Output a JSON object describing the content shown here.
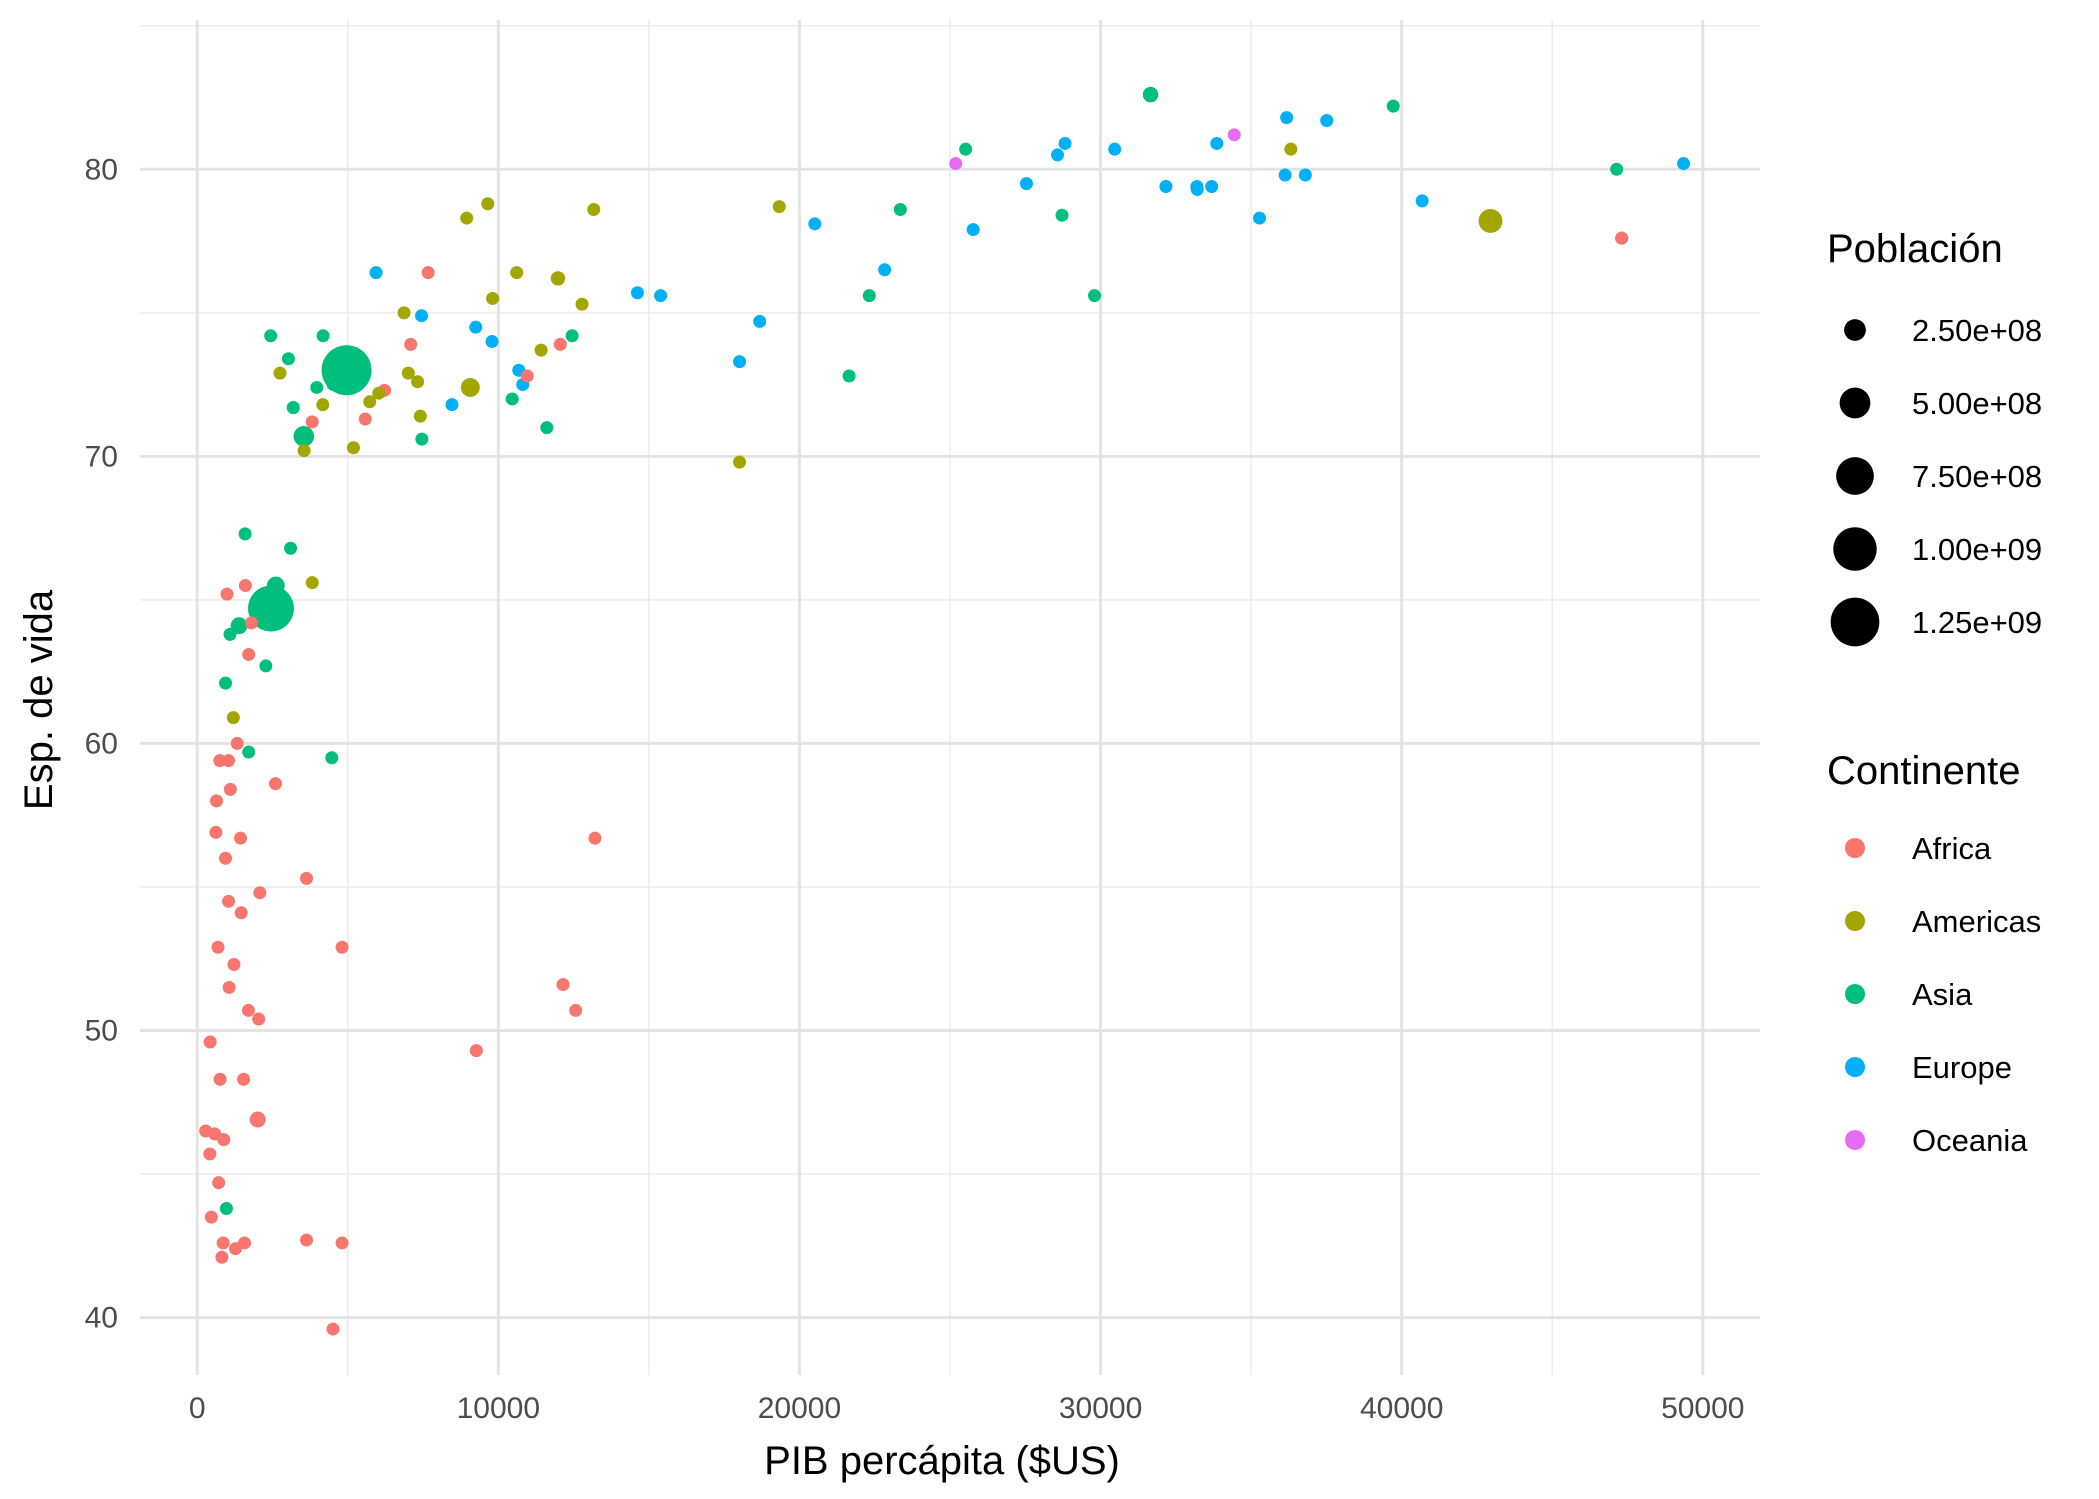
{
  "chart_data": {
    "type": "scatter",
    "title": "",
    "xlabel": "PIB percápita ($US)",
    "ylabel": "Esp. de vida",
    "xlim": [
      -1900,
      51900
    ],
    "ylim": [
      38,
      85.2
    ],
    "x_ticks": [
      0,
      10000,
      20000,
      30000,
      40000,
      50000
    ],
    "x_tick_labels": [
      "0",
      "10000",
      "20000",
      "30000",
      "40000",
      "50000"
    ],
    "y_ticks": [
      40,
      50,
      60,
      70,
      80
    ],
    "y_tick_labels": [
      "40",
      "50",
      "60",
      "70",
      "80"
    ],
    "grid": true,
    "legend_position": "right",
    "size_legend": {
      "title": "Población",
      "values": [
        250000000,
        500000000,
        750000000,
        1000000000,
        1250000000
      ],
      "labels": [
        "2.50e+08",
        "5.00e+08",
        "7.50e+08",
        "1.00e+09",
        "1.25e+09"
      ]
    },
    "color_legend": {
      "title": "Continente",
      "entries": [
        {
          "name": "Africa",
          "color": "#F8766D"
        },
        {
          "name": "Americas",
          "color": "#A3A500"
        },
        {
          "name": "Asia",
          "color": "#00BF7D"
        },
        {
          "name": "Europe",
          "color": "#00B0F6"
        },
        {
          "name": "Oceania",
          "color": "#E76BF3"
        }
      ]
    },
    "series": [
      {
        "name": "Africa",
        "points": [
          [
            6220,
            72.3,
            33000000
          ],
          [
            3630,
            42.7,
            12400000
          ],
          [
            1440,
            56.7,
            8000000
          ],
          [
            12570,
            50.7,
            1600000
          ],
          [
            1220,
            52.3,
            14300000
          ],
          [
            430,
            49.6,
            8400000
          ],
          [
            2040,
            50.4,
            17700000
          ],
          [
            710,
            44.7,
            4400000
          ],
          [
            1700,
            50.7,
            10200000
          ],
          [
            990,
            65.2,
            700000
          ],
          [
            280,
            46.5,
            64600000
          ],
          [
            3630,
            55.3,
            3800000
          ],
          [
            1540,
            48.3,
            18000000
          ],
          [
            2080,
            54.8,
            500000
          ],
          [
            5580,
            71.3,
            80300000
          ],
          [
            12150,
            51.6,
            550000
          ],
          [
            640,
            58.0,
            4900000
          ],
          [
            690,
            52.9,
            76500000
          ],
          [
            13210,
            56.7,
            1450000
          ],
          [
            750,
            59.4,
            1700000
          ],
          [
            1330,
            60.0,
            22900000
          ],
          [
            940,
            56.0,
            9900000
          ],
          [
            580,
            46.4,
            1500000
          ],
          [
            1460,
            54.1,
            35600000
          ],
          [
            1570,
            42.6,
            2000000
          ],
          [
            420,
            45.7,
            3200000
          ],
          [
            12060,
            73.9,
            6000000
          ],
          [
            1040,
            59.4,
            19200000
          ],
          [
            760,
            48.3,
            13300000
          ],
          [
            1040,
            54.5,
            3300000
          ],
          [
            1800,
            64.2,
            1250000
          ],
          [
            10960,
            72.8,
            1250000
          ],
          [
            3820,
            71.2,
            33800000
          ],
          [
            820,
            42.1,
            19900000
          ],
          [
            4810,
            52.9,
            2050000
          ],
          [
            620,
            56.9,
            12900000
          ],
          [
            2010,
            46.9,
            135000000
          ],
          [
            7670,
            76.4,
            800000
          ],
          [
            880,
            46.2,
            8900000
          ],
          [
            1600,
            65.5,
            200000
          ],
          [
            1710,
            63.1,
            12300000
          ],
          [
            860,
            42.6,
            6100000
          ],
          [
            47300,
            77.6,
            10
          ],
          [
            4510,
            39.6,
            1000000
          ],
          [
            9270,
            49.3,
            44000000
          ],
          [
            2600,
            58.6,
            42300000
          ],
          [
            4810,
            42.6,
            5100000
          ],
          [
            1100,
            58.4,
            8200000
          ],
          [
            7090,
            73.9,
            10300000
          ],
          [
            1060,
            51.5,
            29200000
          ],
          [
            1270,
            42.4,
            11700000
          ],
          [
            470,
            43.5,
            12300000
          ]
        ]
      },
      {
        "name": "Americas",
        "points": [
          [
            12780,
            75.3,
            40300000
          ],
          [
            3820,
            65.6,
            9100000
          ],
          [
            9070,
            72.4,
            190000000
          ],
          [
            36320,
            80.7,
            33400000
          ],
          [
            13170,
            78.6,
            16300000
          ],
          [
            7010,
            72.9,
            44200000
          ],
          [
            9650,
            78.8,
            4100000
          ],
          [
            8950,
            78.3,
            11400000
          ],
          [
            6030,
            72.2,
            9300000
          ],
          [
            6870,
            75.0,
            13800000
          ],
          [
            5730,
            71.9,
            6900000
          ],
          [
            5190,
            70.3,
            12600000
          ],
          [
            1200,
            60.9,
            8500000
          ],
          [
            3550,
            70.2,
            7500000
          ],
          [
            7320,
            72.6,
            2800000
          ],
          [
            11980,
            76.2,
            108700000
          ],
          [
            2750,
            72.9,
            5700000
          ],
          [
            9810,
            75.5,
            3200000
          ],
          [
            4170,
            71.8,
            6700000
          ],
          [
            7410,
            71.4,
            28700000
          ],
          [
            19330,
            78.7,
            3900000
          ],
          [
            18010,
            69.8,
            1050000
          ],
          [
            42950,
            78.2,
            301100000
          ],
          [
            10610,
            76.4,
            3400000
          ],
          [
            11420,
            73.7,
            26100000
          ]
        ]
      },
      {
        "name": "Asia",
        "points": [
          [
            970,
            43.8,
            31900000
          ],
          [
            29800,
            75.6,
            700000
          ],
          [
            1390,
            64.1,
            150400000
          ],
          [
            1710,
            59.7,
            14100000
          ],
          [
            4960,
            73.0,
            1318700000
          ],
          [
            39720,
            82.2,
            6900000
          ],
          [
            2450,
            64.7,
            1110400000
          ],
          [
            3540,
            70.7,
            223500000
          ],
          [
            11610,
            71.0,
            69500000
          ],
          [
            4470,
            59.5,
            27500000
          ],
          [
            25520,
            80.7,
            6400000
          ],
          [
            31660,
            82.6,
            127500000
          ],
          [
            4520,
            72.5,
            6100000
          ],
          [
            1590,
            67.3,
            23300000
          ],
          [
            23350,
            78.6,
            49000000
          ],
          [
            47310,
            77.6,
            2500000
          ],
          [
            10460,
            72.0,
            4000000
          ],
          [
            12450,
            74.2,
            24800000
          ],
          [
            3100,
            66.8,
            2900000
          ],
          [
            940,
            62.1,
            47800000
          ],
          [
            1090,
            63.8,
            28900000
          ],
          [
            22320,
            75.6,
            3200000
          ],
          [
            2610,
            65.5,
            169300000
          ],
          [
            3190,
            71.7,
            91100000
          ],
          [
            21650,
            72.8,
            27600000
          ],
          [
            47140,
            80.0,
            4600000
          ],
          [
            3970,
            72.4,
            20400000
          ],
          [
            28720,
            78.4,
            23200000
          ],
          [
            4180,
            74.2,
            65100000
          ],
          [
            2440,
            74.2,
            85300000
          ],
          [
            3030,
            73.4,
            4000000
          ],
          [
            2280,
            62.7,
            22200000
          ],
          [
            7460,
            70.6,
            65100000
          ]
        ]
      },
      {
        "name": "Europe",
        "points": [
          [
            5940,
            76.4,
            3600000
          ],
          [
            36130,
            79.8,
            8200000
          ],
          [
            33690,
            79.4,
            10400000
          ],
          [
            7450,
            74.9,
            4600000
          ],
          [
            10680,
            73.0,
            7300000
          ],
          [
            14620,
            75.7,
            4500000
          ],
          [
            22830,
            76.5,
            10200000
          ],
          [
            35280,
            78.3,
            5500000
          ],
          [
            33210,
            79.3,
            5200000
          ],
          [
            30470,
            80.7,
            61100000
          ],
          [
            32170,
            79.4,
            82400000
          ],
          [
            27540,
            79.5,
            10700000
          ],
          [
            18010,
            73.3,
            10000000
          ],
          [
            36180,
            81.8,
            300000
          ],
          [
            40680,
            78.9,
            4100000
          ],
          [
            28570,
            80.5,
            58100000
          ],
          [
            9250,
            74.5,
            700000
          ],
          [
            36800,
            79.8,
            16600000
          ],
          [
            49360,
            80.2,
            4600000
          ],
          [
            15390,
            75.6,
            38500000
          ],
          [
            20510,
            78.1,
            10600000
          ],
          [
            10810,
            72.5,
            22300000
          ],
          [
            9790,
            74.0,
            10200000
          ],
          [
            18680,
            74.7,
            5400000
          ],
          [
            25770,
            77.9,
            2000000
          ],
          [
            28820,
            80.9,
            40400000
          ],
          [
            33860,
            80.9,
            9000000
          ],
          [
            37510,
            81.7,
            7600000
          ],
          [
            8460,
            71.8,
            71200000
          ],
          [
            33200,
            79.4,
            60800000
          ]
        ]
      },
      {
        "name": "Oceania",
        "points": [
          [
            34440,
            81.2,
            20400000
          ],
          [
            25190,
            80.2,
            4100000
          ]
        ]
      }
    ]
  }
}
